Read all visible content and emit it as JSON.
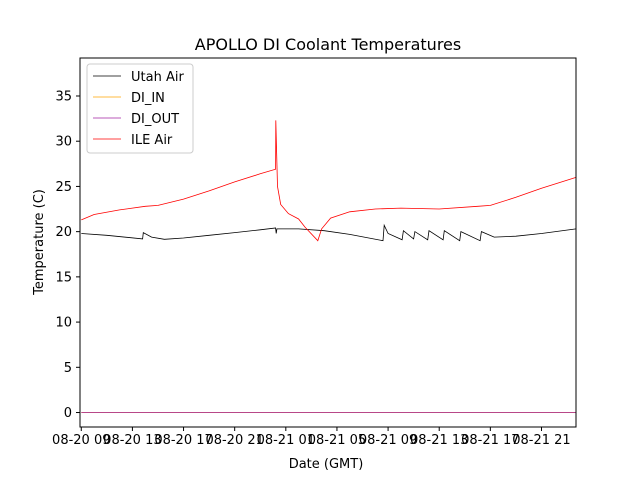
{
  "chart_data": {
    "type": "line",
    "title": "APOLLO DI Coolant Temperatures",
    "xlabel": "Date (GMT)",
    "ylabel": "Temperature (C)",
    "x_units": "hours since 08-20 09:00 GMT",
    "xlim": [
      -0.1,
      38.7
    ],
    "ylim": [
      -1.6,
      39.2
    ],
    "yticks": [
      0,
      5,
      10,
      15,
      20,
      25,
      30,
      35
    ],
    "xticks": [
      {
        "value": 0,
        "label": "08-20 09"
      },
      {
        "value": 4,
        "label": "08-20 13"
      },
      {
        "value": 8,
        "label": "08-20 17"
      },
      {
        "value": 12,
        "label": "08-20 21"
      },
      {
        "value": 16,
        "label": "08-21 01"
      },
      {
        "value": 20,
        "label": "08-21 05"
      },
      {
        "value": 24,
        "label": "08-21 09"
      },
      {
        "value": 28,
        "label": "08-21 13"
      },
      {
        "value": 32,
        "label": "08-21 17"
      },
      {
        "value": 36,
        "label": "08-21 21"
      }
    ],
    "legend_position": "top-left",
    "grid": false,
    "series": [
      {
        "name": "Utah Air",
        "color": "#000000",
        "points": [
          [
            0,
            19.8
          ],
          [
            2,
            19.6
          ],
          [
            4.8,
            19.2
          ],
          [
            4.85,
            19.9
          ],
          [
            5.5,
            19.4
          ],
          [
            6.5,
            19.15
          ],
          [
            8,
            19.3
          ],
          [
            10,
            19.6
          ],
          [
            12,
            19.9
          ],
          [
            14,
            20.2
          ],
          [
            15.2,
            20.4
          ],
          [
            15.25,
            19.8
          ],
          [
            15.3,
            20.3
          ],
          [
            17,
            20.3
          ],
          [
            19,
            20.1
          ],
          [
            21,
            19.7
          ],
          [
            23.6,
            19.0
          ],
          [
            23.7,
            20.7
          ],
          [
            24,
            19.8
          ],
          [
            25.1,
            19.1
          ],
          [
            25.2,
            20.1
          ],
          [
            26,
            19.2
          ],
          [
            26.1,
            20.0
          ],
          [
            27.1,
            19.1
          ],
          [
            27.2,
            20.1
          ],
          [
            28.3,
            19.1
          ],
          [
            28.4,
            20.1
          ],
          [
            29.6,
            19.0
          ],
          [
            29.7,
            20.0
          ],
          [
            31.2,
            19.0
          ],
          [
            31.3,
            20.0
          ],
          [
            32.3,
            19.4
          ],
          [
            34,
            19.5
          ],
          [
            36,
            19.8
          ],
          [
            38.7,
            20.3
          ]
        ]
      },
      {
        "name": "DI_IN",
        "color": "#ffa500",
        "points": [
          [
            0,
            0
          ],
          [
            38.7,
            0
          ]
        ]
      },
      {
        "name": "DI_OUT",
        "color": "#a020a0",
        "points": [
          [
            0,
            0
          ],
          [
            38.7,
            0
          ]
        ]
      },
      {
        "name": "ILE Air",
        "color": "#ff0000",
        "points": [
          [
            0,
            21.3
          ],
          [
            1,
            21.9
          ],
          [
            3,
            22.4
          ],
          [
            5,
            22.8
          ],
          [
            6,
            22.9
          ],
          [
            8,
            23.6
          ],
          [
            10,
            24.5
          ],
          [
            12,
            25.5
          ],
          [
            14,
            26.4
          ],
          [
            15.2,
            26.9
          ],
          [
            15.22,
            32.3
          ],
          [
            15.35,
            25.0
          ],
          [
            15.6,
            23.0
          ],
          [
            16.2,
            22.0
          ],
          [
            17,
            21.4
          ],
          [
            17.5,
            20.5
          ],
          [
            18.5,
            19.0
          ],
          [
            18.8,
            20.3
          ],
          [
            19.5,
            21.5
          ],
          [
            21,
            22.2
          ],
          [
            23,
            22.5
          ],
          [
            25,
            22.6
          ],
          [
            28,
            22.5
          ],
          [
            31,
            22.8
          ],
          [
            32,
            22.9
          ],
          [
            34,
            23.8
          ],
          [
            36,
            24.8
          ],
          [
            38.7,
            26.0
          ]
        ]
      }
    ]
  }
}
